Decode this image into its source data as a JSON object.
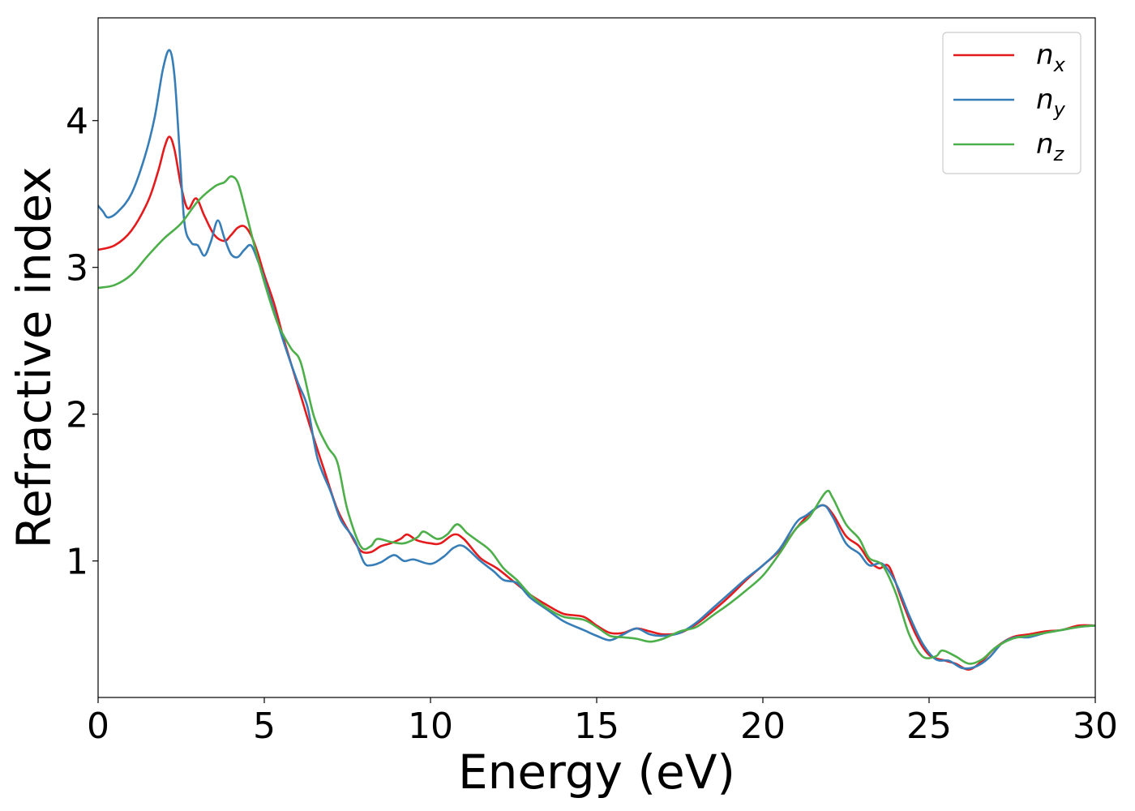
{
  "chart_data": {
    "type": "line",
    "title": "",
    "xlabel": "Energy (eV)",
    "ylabel": "Refractive index",
    "xlim": [
      0,
      30
    ],
    "ylim": [
      0.07,
      4.7
    ],
    "xticks": [
      0,
      5,
      10,
      15,
      20,
      25,
      30
    ],
    "xtick_labels": [
      "0",
      "5",
      "10",
      "15",
      "20",
      "25",
      "30"
    ],
    "yticks": [
      1,
      2,
      3,
      4
    ],
    "ytick_labels": [
      "1",
      "2",
      "3",
      "4"
    ],
    "grid": false,
    "legend_position": "top-right",
    "series": [
      {
        "name": "n_x",
        "legend_main": "n",
        "legend_sub": "x",
        "color": "#e41a1c",
        "points": [
          [
            0,
            3.12
          ],
          [
            0.5,
            3.15
          ],
          [
            1,
            3.25
          ],
          [
            1.5,
            3.45
          ],
          [
            1.8,
            3.65
          ],
          [
            2.0,
            3.82
          ],
          [
            2.15,
            3.89
          ],
          [
            2.3,
            3.8
          ],
          [
            2.5,
            3.55
          ],
          [
            2.7,
            3.4
          ],
          [
            2.95,
            3.47
          ],
          [
            3.2,
            3.35
          ],
          [
            3.5,
            3.22
          ],
          [
            3.8,
            3.18
          ],
          [
            4.0,
            3.22
          ],
          [
            4.2,
            3.27
          ],
          [
            4.4,
            3.28
          ],
          [
            4.6,
            3.22
          ],
          [
            4.8,
            3.1
          ],
          [
            5.0,
            2.95
          ],
          [
            5.3,
            2.75
          ],
          [
            5.6,
            2.5
          ],
          [
            6.0,
            2.2
          ],
          [
            6.4,
            1.9
          ],
          [
            6.8,
            1.62
          ],
          [
            7.2,
            1.35
          ],
          [
            7.6,
            1.18
          ],
          [
            7.9,
            1.07
          ],
          [
            8.2,
            1.06
          ],
          [
            8.5,
            1.1
          ],
          [
            8.8,
            1.12
          ],
          [
            9.1,
            1.15
          ],
          [
            9.3,
            1.18
          ],
          [
            9.6,
            1.14
          ],
          [
            10.0,
            1.12
          ],
          [
            10.3,
            1.12
          ],
          [
            10.7,
            1.18
          ],
          [
            11.0,
            1.15
          ],
          [
            11.5,
            1.02
          ],
          [
            12.0,
            0.95
          ],
          [
            12.5,
            0.86
          ],
          [
            13.0,
            0.77
          ],
          [
            13.5,
            0.7
          ],
          [
            14.0,
            0.64
          ],
          [
            14.6,
            0.62
          ],
          [
            15.0,
            0.56
          ],
          [
            15.4,
            0.51
          ],
          [
            15.8,
            0.51
          ],
          [
            16.2,
            0.54
          ],
          [
            16.6,
            0.52
          ],
          [
            17.0,
            0.5
          ],
          [
            17.5,
            0.51
          ],
          [
            18.0,
            0.57
          ],
          [
            18.5,
            0.66
          ],
          [
            19.0,
            0.76
          ],
          [
            19.5,
            0.87
          ],
          [
            20.0,
            0.97
          ],
          [
            20.5,
            1.07
          ],
          [
            21.0,
            1.22
          ],
          [
            21.4,
            1.32
          ],
          [
            21.8,
            1.38
          ],
          [
            22.1,
            1.32
          ],
          [
            22.5,
            1.17
          ],
          [
            22.9,
            1.1
          ],
          [
            23.2,
            1.0
          ],
          [
            23.5,
            0.95
          ],
          [
            23.8,
            0.96
          ],
          [
            24.2,
            0.72
          ],
          [
            24.6,
            0.5
          ],
          [
            25.0,
            0.36
          ],
          [
            25.5,
            0.32
          ],
          [
            25.8,
            0.3
          ],
          [
            26.2,
            0.26
          ],
          [
            26.6,
            0.32
          ],
          [
            27.0,
            0.41
          ],
          [
            27.5,
            0.48
          ],
          [
            28.0,
            0.5
          ],
          [
            28.5,
            0.52
          ],
          [
            29.0,
            0.53
          ],
          [
            29.5,
            0.56
          ],
          [
            30.0,
            0.56
          ]
        ]
      },
      {
        "name": "n_y",
        "legend_main": "n",
        "legend_sub": "y",
        "color": "#377eb8",
        "points": [
          [
            0,
            3.42
          ],
          [
            0.15,
            3.38
          ],
          [
            0.3,
            3.34
          ],
          [
            0.6,
            3.38
          ],
          [
            1.0,
            3.5
          ],
          [
            1.4,
            3.75
          ],
          [
            1.7,
            4.02
          ],
          [
            1.95,
            4.35
          ],
          [
            2.15,
            4.48
          ],
          [
            2.3,
            4.3
          ],
          [
            2.45,
            3.8
          ],
          [
            2.6,
            3.3
          ],
          [
            2.8,
            3.17
          ],
          [
            3.0,
            3.15
          ],
          [
            3.2,
            3.08
          ],
          [
            3.4,
            3.18
          ],
          [
            3.6,
            3.32
          ],
          [
            3.8,
            3.2
          ],
          [
            4.0,
            3.09
          ],
          [
            4.2,
            3.07
          ],
          [
            4.4,
            3.12
          ],
          [
            4.6,
            3.15
          ],
          [
            4.8,
            3.05
          ],
          [
            5.0,
            2.92
          ],
          [
            5.3,
            2.7
          ],
          [
            5.6,
            2.48
          ],
          [
            6.0,
            2.22
          ],
          [
            6.3,
            2.05
          ],
          [
            6.6,
            1.7
          ],
          [
            7.0,
            1.47
          ],
          [
            7.3,
            1.28
          ],
          [
            7.7,
            1.15
          ],
          [
            8.0,
            0.99
          ],
          [
            8.2,
            0.97
          ],
          [
            8.5,
            0.99
          ],
          [
            8.9,
            1.04
          ],
          [
            9.2,
            1.0
          ],
          [
            9.5,
            1.01
          ],
          [
            10.0,
            0.98
          ],
          [
            10.4,
            1.03
          ],
          [
            10.7,
            1.09
          ],
          [
            11.0,
            1.1
          ],
          [
            11.5,
            1.0
          ],
          [
            11.9,
            0.93
          ],
          [
            12.2,
            0.87
          ],
          [
            12.6,
            0.85
          ],
          [
            13.0,
            0.75
          ],
          [
            13.5,
            0.67
          ],
          [
            14.0,
            0.59
          ],
          [
            14.6,
            0.53
          ],
          [
            15.0,
            0.49
          ],
          [
            15.4,
            0.46
          ],
          [
            15.8,
            0.5
          ],
          [
            16.2,
            0.54
          ],
          [
            16.6,
            0.5
          ],
          [
            17.0,
            0.49
          ],
          [
            17.5,
            0.51
          ],
          [
            18.0,
            0.58
          ],
          [
            18.5,
            0.68
          ],
          [
            19.0,
            0.78
          ],
          [
            19.5,
            0.88
          ],
          [
            20.0,
            0.97
          ],
          [
            20.5,
            1.08
          ],
          [
            21.0,
            1.26
          ],
          [
            21.3,
            1.31
          ],
          [
            21.8,
            1.38
          ],
          [
            22.1,
            1.3
          ],
          [
            22.5,
            1.12
          ],
          [
            22.9,
            1.05
          ],
          [
            23.2,
            0.97
          ],
          [
            23.6,
            0.98
          ],
          [
            24.0,
            0.85
          ],
          [
            24.4,
            0.63
          ],
          [
            24.8,
            0.44
          ],
          [
            25.2,
            0.33
          ],
          [
            25.6,
            0.32
          ],
          [
            26.0,
            0.27
          ],
          [
            26.4,
            0.28
          ],
          [
            26.8,
            0.34
          ],
          [
            27.2,
            0.44
          ],
          [
            27.6,
            0.48
          ],
          [
            28.0,
            0.48
          ],
          [
            28.5,
            0.51
          ],
          [
            29.0,
            0.53
          ],
          [
            29.5,
            0.55
          ],
          [
            30.0,
            0.56
          ]
        ]
      },
      {
        "name": "n_z",
        "legend_main": "n",
        "legend_sub": "z",
        "color": "#4daf4a",
        "points": [
          [
            0,
            2.86
          ],
          [
            0.5,
            2.88
          ],
          [
            1.0,
            2.95
          ],
          [
            1.5,
            3.08
          ],
          [
            2.0,
            3.2
          ],
          [
            2.5,
            3.3
          ],
          [
            3.0,
            3.45
          ],
          [
            3.5,
            3.55
          ],
          [
            3.8,
            3.58
          ],
          [
            4.0,
            3.62
          ],
          [
            4.2,
            3.58
          ],
          [
            4.4,
            3.42
          ],
          [
            4.7,
            3.15
          ],
          [
            5.0,
            2.9
          ],
          [
            5.4,
            2.62
          ],
          [
            5.8,
            2.45
          ],
          [
            6.1,
            2.35
          ],
          [
            6.5,
            1.98
          ],
          [
            6.9,
            1.78
          ],
          [
            7.2,
            1.67
          ],
          [
            7.5,
            1.35
          ],
          [
            7.9,
            1.1
          ],
          [
            8.2,
            1.1
          ],
          [
            8.4,
            1.15
          ],
          [
            8.8,
            1.13
          ],
          [
            9.2,
            1.12
          ],
          [
            9.6,
            1.16
          ],
          [
            9.8,
            1.2
          ],
          [
            10.2,
            1.15
          ],
          [
            10.5,
            1.18
          ],
          [
            10.8,
            1.25
          ],
          [
            11.1,
            1.19
          ],
          [
            11.4,
            1.14
          ],
          [
            11.8,
            1.07
          ],
          [
            12.2,
            0.95
          ],
          [
            12.6,
            0.87
          ],
          [
            13.0,
            0.77
          ],
          [
            13.5,
            0.68
          ],
          [
            14.0,
            0.62
          ],
          [
            14.6,
            0.6
          ],
          [
            15.0,
            0.55
          ],
          [
            15.4,
            0.49
          ],
          [
            15.8,
            0.48
          ],
          [
            16.2,
            0.47
          ],
          [
            16.6,
            0.45
          ],
          [
            17.0,
            0.47
          ],
          [
            17.5,
            0.52
          ],
          [
            18.0,
            0.55
          ],
          [
            18.5,
            0.63
          ],
          [
            19.0,
            0.71
          ],
          [
            19.5,
            0.8
          ],
          [
            20.0,
            0.9
          ],
          [
            20.5,
            1.05
          ],
          [
            21.0,
            1.22
          ],
          [
            21.4,
            1.3
          ],
          [
            21.9,
            1.47
          ],
          [
            22.1,
            1.43
          ],
          [
            22.5,
            1.25
          ],
          [
            22.9,
            1.15
          ],
          [
            23.2,
            1.02
          ],
          [
            23.6,
            0.97
          ],
          [
            24.0,
            0.78
          ],
          [
            24.4,
            0.5
          ],
          [
            24.8,
            0.35
          ],
          [
            25.2,
            0.35
          ],
          [
            25.4,
            0.39
          ],
          [
            25.8,
            0.35
          ],
          [
            26.2,
            0.3
          ],
          [
            26.6,
            0.33
          ],
          [
            27.0,
            0.41
          ],
          [
            27.5,
            0.47
          ],
          [
            28.0,
            0.49
          ],
          [
            28.5,
            0.51
          ],
          [
            29.0,
            0.53
          ],
          [
            29.5,
            0.55
          ],
          [
            30.0,
            0.56
          ]
        ]
      }
    ]
  }
}
